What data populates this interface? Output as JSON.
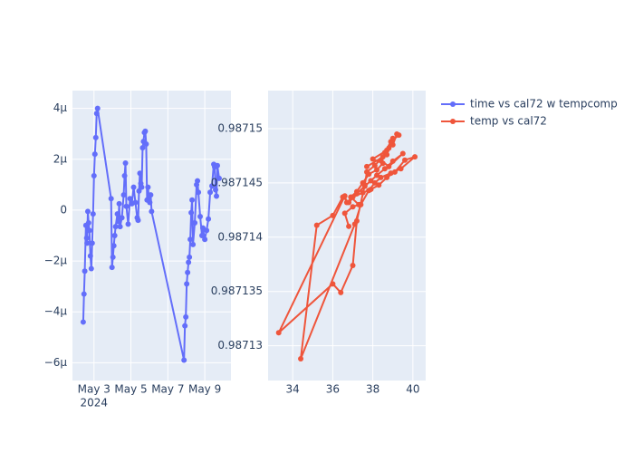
{
  "chart_data": [
    {
      "type": "line",
      "x": [
        "2024-05-02T10:00",
        "2024-05-02T11:00",
        "2024-05-02T12:00",
        "2024-05-02T13:30",
        "2024-05-02T14:30",
        "2024-05-02T15:00",
        "2024-05-02T16:00",
        "2024-05-02T17:00",
        "2024-05-02T18:00",
        "2024-05-02T19:20",
        "2024-05-02T20:30",
        "2024-05-02T21:40",
        "2024-05-02T22:50",
        "2024-05-03T00:00",
        "2024-05-03T01:10",
        "2024-05-03T02:20",
        "2024-05-03T03:30",
        "2024-05-03T04:40",
        "2024-05-03T22:15",
        "2024-05-03T23:25",
        "2024-05-04T00:35",
        "2024-05-04T01:45",
        "2024-05-04T02:55",
        "2024-05-04T04:05",
        "2024-05-04T06:25",
        "2024-05-04T07:35",
        "2024-05-04T08:45",
        "2024-05-04T09:55",
        "2024-05-04T12:15",
        "2024-05-04T14:35",
        "2024-05-04T15:45",
        "2024-05-04T16:55",
        "2024-05-04T18:05",
        "2024-05-04T20:25",
        "2024-05-04T22:50",
        "2024-05-05T01:10",
        "2024-05-05T03:30",
        "2024-05-05T05:50",
        "2024-05-05T08:10",
        "2024-05-05T09:20",
        "2024-05-05T10:30",
        "2024-05-05T11:40",
        "2024-05-05T12:50",
        "2024-05-05T14:00",
        "2024-05-05T15:10",
        "2024-05-05T16:20",
        "2024-05-05T17:30",
        "2024-05-05T18:40",
        "2024-05-05T19:50",
        "2024-05-05T21:00",
        "2024-05-05T22:10",
        "2024-05-05T23:20",
        "2024-05-06T00:30",
        "2024-05-06T01:40",
        "2024-05-06T02:50",
        "2024-05-07T21:00",
        "2024-05-07T22:10",
        "2024-05-07T23:20",
        "2024-05-08T00:30",
        "2024-05-08T01:40",
        "2024-05-08T02:50",
        "2024-05-08T04:00",
        "2024-05-08T05:10",
        "2024-05-08T06:20",
        "2024-05-08T07:30",
        "2024-05-08T08:40",
        "2024-05-08T11:00",
        "2024-05-08T13:20",
        "2024-05-08T14:30",
        "2024-05-08T15:40",
        "2024-05-08T18:00",
        "2024-05-08T20:20",
        "2024-05-08T21:30",
        "2024-05-09T00:00",
        "2024-05-09T02:20",
        "2024-05-09T04:40",
        "2024-05-09T07:00",
        "2024-05-09T09:20",
        "2024-05-09T11:40",
        "2024-05-09T12:50",
        "2024-05-09T14:00",
        "2024-05-09T15:10",
        "2024-05-09T16:20",
        "2024-05-09T18:40"
      ],
      "series": [
        {
          "name": "time vs cal72 w tempcomp",
          "color": "#636efa",
          "values": [
            -4.4e-06,
            -3.3e-06,
            -2.4e-06,
            -6e-07,
            -1.1e-06,
            -1.3e-06,
            -5e-08,
            -5e-07,
            -8e-07,
            -1.8e-06,
            -2.3e-06,
            -1.3e-06,
            -1.5e-07,
            1.35e-06,
            2.2e-06,
            2.85e-06,
            3.8e-06,
            4e-06,
            4.5e-07,
            -2.25e-06,
            -1.85e-06,
            -1.4e-06,
            -1e-06,
            -6.5e-07,
            -1.5e-07,
            -4.5e-07,
            2.5e-07,
            -6.5e-07,
            -3e-07,
            6e-07,
            1.35e-06,
            1.85e-06,
            1.5e-07,
            -5.5e-07,
            4.5e-07,
            2.5e-07,
            9e-07,
            3e-07,
            -3e-07,
            -4e-07,
            7.5e-07,
            1.45e-06,
            1.05e-06,
            9e-07,
            2.45e-06,
            2.7e-06,
            3.05e-06,
            3.1e-06,
            2.6e-06,
            4e-07,
            9e-07,
            5e-07,
            3e-07,
            6e-07,
            -5e-08,
            -5.9e-06,
            -4.55e-06,
            -4.2e-06,
            -2.9e-06,
            -2.45e-06,
            -2.05e-06,
            -1.85e-06,
            -1.15e-06,
            -1e-07,
            4e-07,
            -1.35e-06,
            -5e-07,
            1e-06,
            1.15e-06,
            7e-07,
            -2.5e-07,
            -1e-06,
            -7e-07,
            -1.15e-06,
            -8e-07,
            -3.5e-07,
            7e-07,
            9.5e-07,
            1.8e-06,
            1.7e-06,
            8e-07,
            5.5e-07,
            1.75e-06,
            1.25e-06
          ]
        }
      ],
      "xlim": [
        "2024-05-01T20:00",
        "2024-05-10T10:00"
      ],
      "xticks": [
        {
          "value": "2024-05-03",
          "label": "May 3"
        },
        {
          "value": "2024-05-05",
          "label": "May 5"
        },
        {
          "value": "2024-05-07",
          "label": "May 7"
        },
        {
          "value": "2024-05-09",
          "label": "May 9"
        }
      ],
      "x_sublabel": "2024",
      "ylim": [
        -6.7e-06,
        4.7e-06
      ],
      "yticks": [
        {
          "value": -6e-06,
          "label": "−6µ"
        },
        {
          "value": -4e-06,
          "label": "−4µ"
        },
        {
          "value": -2e-06,
          "label": "−2µ"
        },
        0,
        {
          "value": 2e-06,
          "label": "2µ"
        },
        {
          "value": 4e-06,
          "label": "4µ"
        }
      ],
      "grid": true
    },
    {
      "type": "line",
      "x": [
        36.8,
        36.6,
        37.0,
        37.3,
        36.9,
        37.2,
        37.5,
        37.8,
        38.2,
        38.5,
        38.0,
        38.7,
        39.0,
        39.2,
        39.3,
        38.9,
        38.6,
        38.4,
        38.8,
        39.5,
        39.0,
        38.6,
        38.2,
        37.9,
        37.6,
        37.2,
        36.8,
        36.5,
        36.0,
        35.2,
        34.4,
        37.1,
        37.4,
        37.8,
        38.1,
        38.4,
        38.9,
        39.4,
        40.1,
        39.6,
        39.1,
        38.7,
        38.3,
        37.9,
        37.5,
        37.0,
        36.7,
        36.6,
        33.3,
        36.0,
        36.4,
        37.0,
        37.2,
        37.6,
        37.7,
        38.1,
        38.5,
        38.8,
        39.0,
        38.7,
        37.7
      ],
      "series": [
        {
          "name": "temp vs cal72",
          "color": "#ef553b",
          "values": [
            0.987141,
            0.9871422,
            0.9871428,
            0.987143,
            0.9871437,
            0.9871442,
            0.987145,
            0.9871458,
            0.9871462,
            0.9871468,
            0.9871472,
            0.987148,
            0.9871485,
            0.9871495,
            0.9871494,
            0.9871488,
            0.9871478,
            0.9871471,
            0.9871465,
            0.9871477,
            0.987147,
            0.9871463,
            0.9871457,
            0.9871452,
            0.9871447,
            0.987144,
            0.9871432,
            0.9871437,
            0.987142,
            0.9871411,
            0.9871288,
            0.9871412,
            0.987143,
            0.9871443,
            0.987145,
            0.9871455,
            0.9871459,
            0.9871463,
            0.9871474,
            0.9871471,
            0.987146,
            0.9871455,
            0.9871448,
            0.9871444,
            0.9871441,
            0.9871437,
            0.9871432,
            0.9871438,
            0.9871312,
            0.9871357,
            0.9871349,
            0.9871374,
            0.9871415,
            0.9871448,
            0.987146,
            0.9871466,
            0.9871474,
            0.9871482,
            0.9871491,
            0.9871476,
            0.9871465
          ]
        }
      ],
      "xlim": [
        32.77,
        40.64
      ],
      "xticks": [
        34,
        36,
        38,
        40
      ],
      "ylim": [
        0.9871268,
        0.9871535
      ],
      "yticks": [
        0.98713,
        0.987135,
        0.98714,
        0.987145,
        0.98715
      ],
      "grid": true
    }
  ]
}
